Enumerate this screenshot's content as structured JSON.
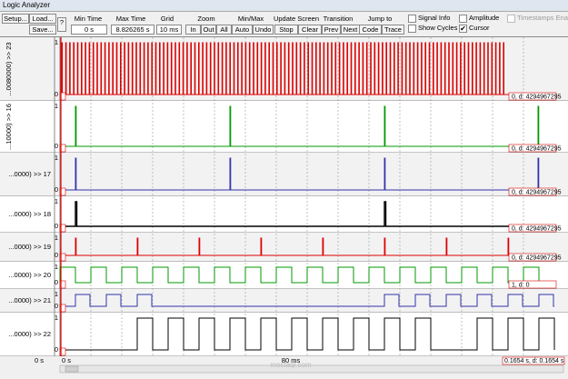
{
  "window": {
    "title": "Logic Analyzer"
  },
  "toolbar": {
    "setup": "Setup...",
    "load": "Load...",
    "save": "Save...",
    "help": "?",
    "min_time": {
      "label": "Min Time",
      "value": "0 s"
    },
    "max_time": {
      "label": "Max Time",
      "value": "8.826265 s"
    },
    "grid": {
      "label": "Grid",
      "value": "10 ms"
    },
    "zoom": {
      "label": "Zoom",
      "buttons": [
        "In",
        "Out",
        "All"
      ]
    },
    "minmax": {
      "label": "Min/Max",
      "buttons": [
        "Auto",
        "Undo"
      ]
    },
    "update": {
      "label": "Update Screen",
      "buttons": [
        "Stop",
        "Clear"
      ]
    },
    "transition": {
      "label": "Transition",
      "buttons": [
        "Prev",
        "Next"
      ]
    },
    "jump": {
      "label": "Jump to",
      "buttons": [
        "Code",
        "Trace"
      ]
    },
    "checks": [
      {
        "label": "Signal Info",
        "checked": false
      },
      {
        "label": "Show Cycles",
        "checked": false
      },
      {
        "label": "Amplitude",
        "checked": false
      },
      {
        "label": "Cursor",
        "checked": true
      },
      {
        "label": "Timestamps Ena",
        "checked": false
      }
    ]
  },
  "signals": [
    {
      "label": "...0080000) >> 23",
      "high": "1",
      "low": "0",
      "status": "0,  d: 4294967295"
    },
    {
      "label": "...10000) >> 16",
      "high": "1",
      "low": "0",
      "status": "0,  d: 4294967295"
    },
    {
      "label": "...0000) >> 17",
      "high": "1",
      "low": "0",
      "status": "0,  d: 4294967295"
    },
    {
      "label": "...0000) >> 18",
      "high": "1",
      "low": "0",
      "status": "0,  d: 4294967295"
    },
    {
      "label": "...0000) >> 19",
      "high": "1",
      "low": "0",
      "status": "0,  d: 4294967295"
    },
    {
      "label": "...0000) >> 20",
      "high": "1",
      "low": "0",
      "status": "1,  d: 0"
    },
    {
      "label": "...0000) >> 21",
      "high": "1",
      "low": "0",
      "status": ""
    },
    {
      "label": "...0000) >> 22",
      "high": "1",
      "low": "0",
      "status": ""
    }
  ],
  "timeline": {
    "start_left": "0 s",
    "start": "0 s",
    "middle": "80 ms",
    "cursor": "0.1654 s,  d: 0.1654 s"
  },
  "watermark": "mostaql.com"
}
